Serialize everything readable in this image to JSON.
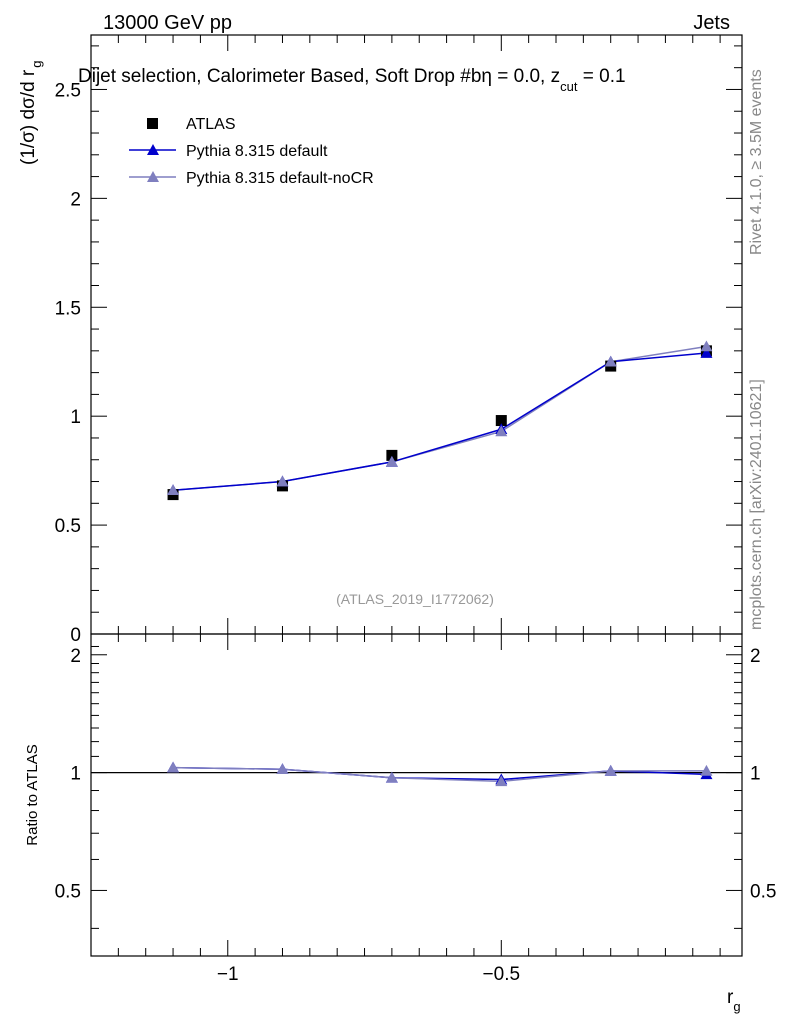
{
  "header": {
    "left": "13000 GeV pp",
    "right": "Jets"
  },
  "side": {
    "rivet": "Rivet 4.1.0, ≥ 3.5M events",
    "mcplots": "mcplots.cern.ch [arXiv:2401.10621]"
  },
  "colors": {
    "atlas": "#000000",
    "pythia_default": "#0000cc",
    "pythia_nocr": "#7f7fbf",
    "watermark": "#999999",
    "side_text": "#888888"
  },
  "chart_data": [
    {
      "type": "line",
      "panel": "main",
      "title_main": "Dijet selection, Calorimeter Based, Soft Drop #b",
      "title_eta": "η = 0.0, z",
      "title_sub": "cut",
      "title_end": " = 0.1",
      "ylabel": "(1/σ) dσ/d r",
      "ylabel_sub": "g",
      "xlabel": "",
      "watermark": "(ATLAS_2019_I1772062)",
      "xlim": [
        -1.25,
        -0.06
      ],
      "ylim": [
        0,
        2.75
      ],
      "yticks": [
        0,
        0.5,
        1,
        1.5,
        2,
        2.5
      ],
      "ytick_labels": [
        "0",
        "0.5",
        "1",
        "1.5",
        "2",
        "2.5"
      ],
      "legend": {
        "position": "top-left",
        "entries": [
          "ATLAS",
          "Pythia 8.315 default",
          "Pythia 8.315 default-noCR"
        ]
      },
      "x": [
        -1.1,
        -0.9,
        -0.7,
        -0.5,
        -0.3,
        -0.125
      ],
      "series": [
        {
          "name": "ATLAS",
          "marker": "square",
          "values": [
            0.64,
            0.68,
            0.82,
            0.98,
            1.23,
            1.3
          ]
        },
        {
          "name": "Pythia 8.315 default",
          "marker": "triangle",
          "values": [
            0.66,
            0.7,
            0.79,
            0.94,
            1.25,
            1.29
          ]
        },
        {
          "name": "Pythia 8.315 default-noCR",
          "marker": "triangle",
          "values": [
            0.66,
            0.7,
            0.79,
            0.93,
            1.25,
            1.32
          ]
        }
      ]
    },
    {
      "type": "line",
      "panel": "ratio",
      "ylabel": "Ratio to ATLAS",
      "xlabel": "r",
      "xlabel_sub": "g",
      "xlim": [
        -1.25,
        -0.06
      ],
      "ylim": [
        0.34,
        2.26
      ],
      "yticks": [
        0.5,
        1,
        2
      ],
      "ytick_labels": [
        "0.5",
        "1",
        "2"
      ],
      "xticks": [
        -1,
        -0.5
      ],
      "xtick_labels": [
        "−1",
        "−0.5"
      ],
      "reference": 1,
      "x": [
        -1.1,
        -0.9,
        -0.7,
        -0.5,
        -0.3,
        -0.125
      ],
      "series": [
        {
          "name": "Pythia 8.315 default",
          "values": [
            1.03,
            1.02,
            0.97,
            0.96,
            1.01,
            0.99
          ]
        },
        {
          "name": "Pythia 8.315 default-noCR",
          "values": [
            1.03,
            1.02,
            0.97,
            0.95,
            1.01,
            1.01
          ]
        }
      ]
    }
  ]
}
